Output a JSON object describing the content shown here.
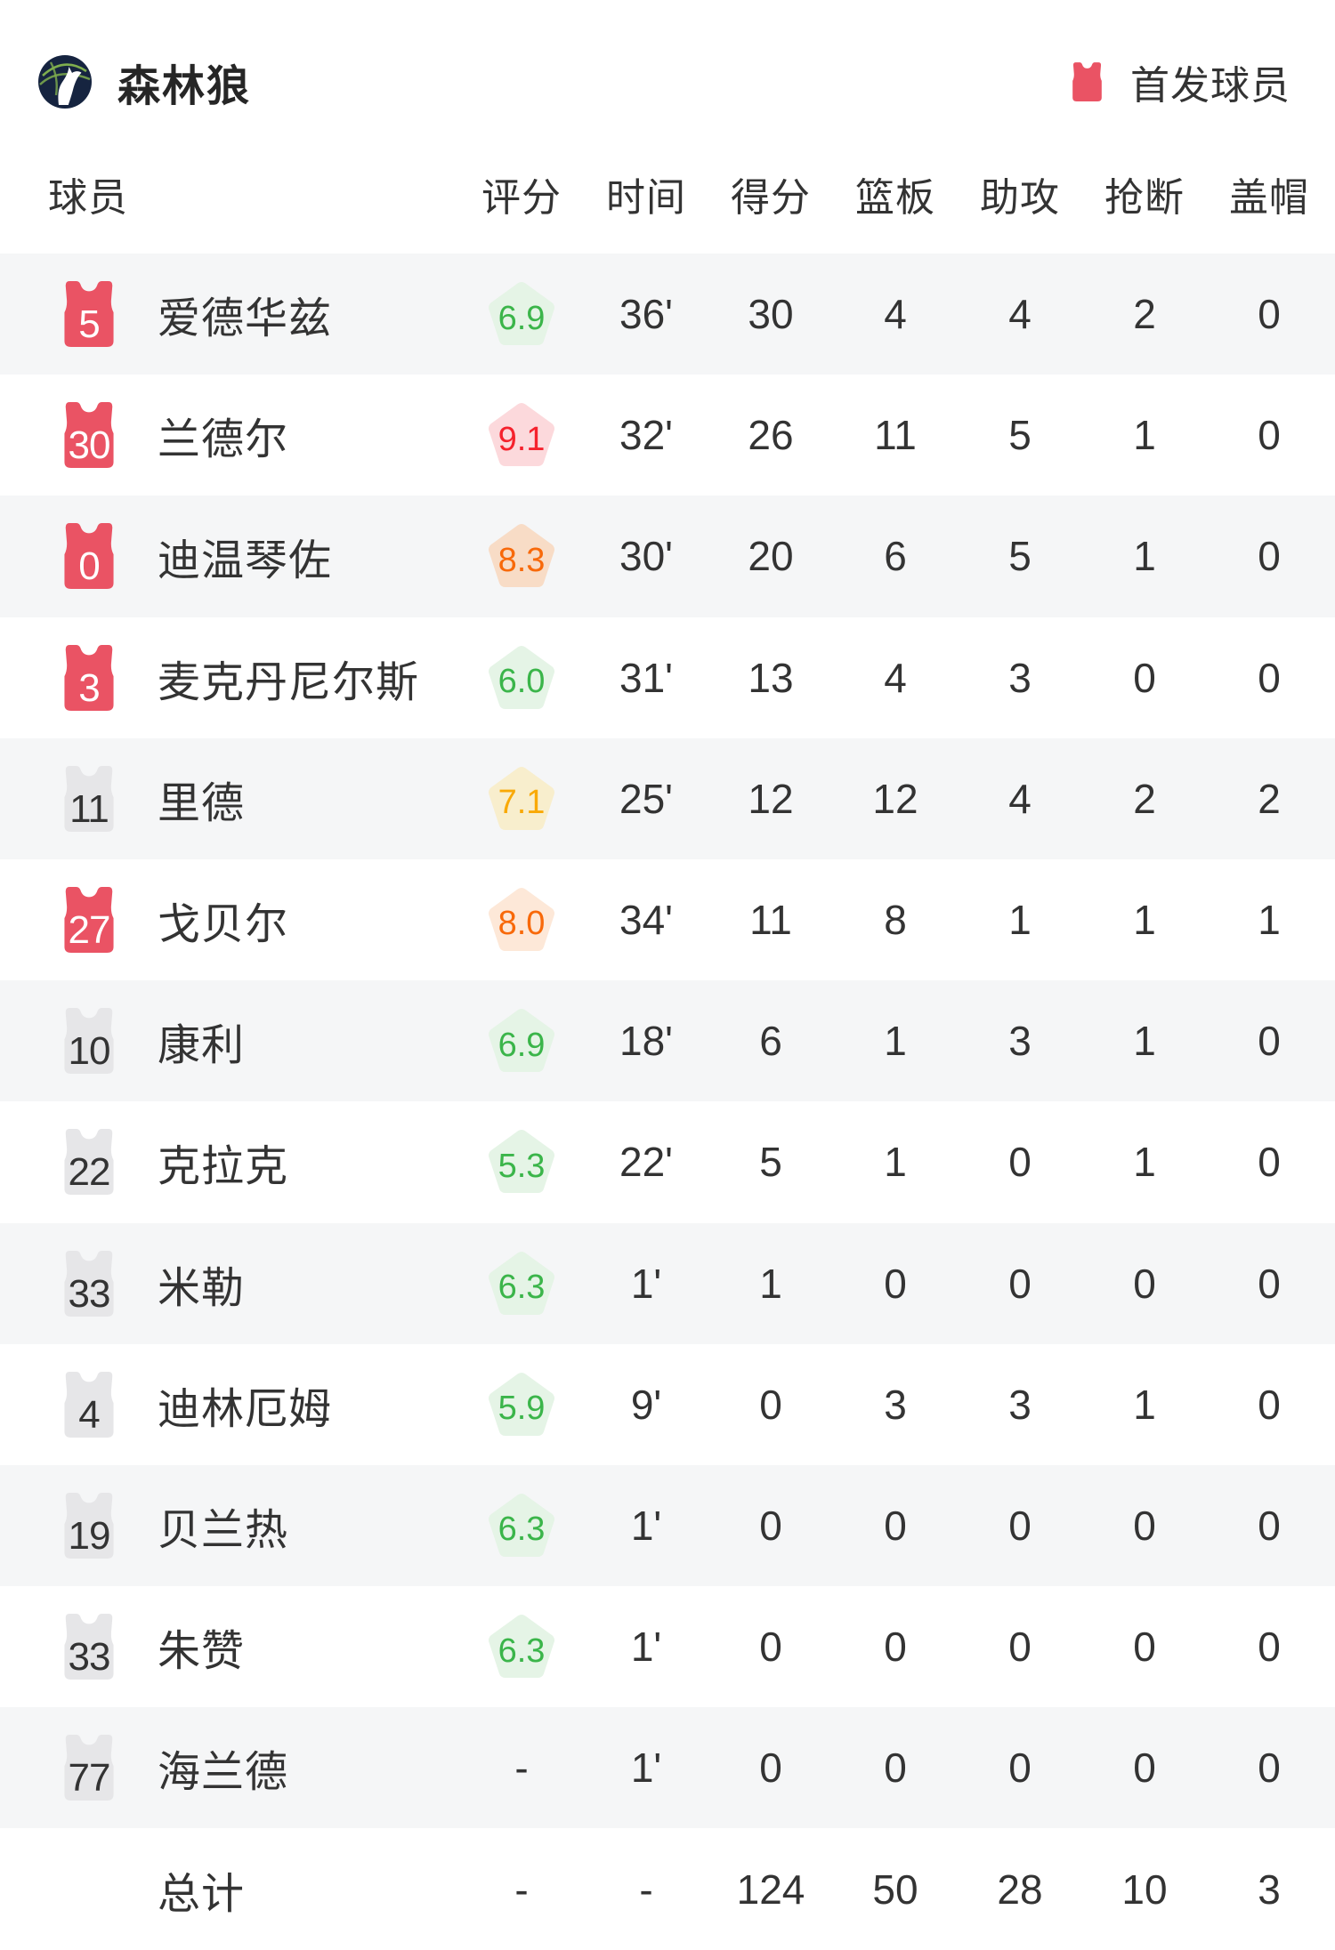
{
  "header": {
    "team_name": "森林狼",
    "legend_label": "首发球员",
    "logo_icon": "timberwolves-logo",
    "legend_icon": "red-jersey-icon"
  },
  "table": {
    "columns": [
      "球员",
      "评分",
      "时间",
      "得分",
      "篮板",
      "助攻",
      "抢断",
      "盖帽"
    ]
  },
  "colors": {
    "starter_jersey": "#ea5364",
    "bench_jersey": "#e6e6e8",
    "row_stripe": "#f5f6f7",
    "text_dark": "#333333",
    "logo_bg": "#162440",
    "logo_lines": "#7fae4e"
  },
  "rating_colors": {
    "green": {
      "bg": "#e5f4e6",
      "text": "#3bb54a"
    },
    "yellow": {
      "bg": "#f8eecd",
      "text": "#f9a906"
    },
    "orange": {
      "bg": "#f8dcc6",
      "text": "#f8690a"
    },
    "orange_light": {
      "bg": "#fde8d8",
      "text": "#f8690a"
    },
    "red": {
      "bg": "#fcd9dc",
      "text": "#f5222d"
    }
  },
  "players": [
    {
      "number": "5",
      "starter": true,
      "name": "爱德华兹",
      "rating": "6.9",
      "rating_level": "green",
      "time": "36'",
      "pts": "30",
      "reb": "4",
      "ast": "4",
      "stl": "2",
      "blk": "0"
    },
    {
      "number": "30",
      "starter": true,
      "name": "兰德尔",
      "rating": "9.1",
      "rating_level": "red",
      "time": "32'",
      "pts": "26",
      "reb": "11",
      "ast": "5",
      "stl": "1",
      "blk": "0"
    },
    {
      "number": "0",
      "starter": true,
      "name": "迪温琴佐",
      "rating": "8.3",
      "rating_level": "orange",
      "time": "30'",
      "pts": "20",
      "reb": "6",
      "ast": "5",
      "stl": "1",
      "blk": "0"
    },
    {
      "number": "3",
      "starter": true,
      "name": "麦克丹尼尔斯",
      "rating": "6.0",
      "rating_level": "green",
      "time": "31'",
      "pts": "13",
      "reb": "4",
      "ast": "3",
      "stl": "0",
      "blk": "0"
    },
    {
      "number": "11",
      "starter": false,
      "name": "里德",
      "rating": "7.1",
      "rating_level": "yellow",
      "time": "25'",
      "pts": "12",
      "reb": "12",
      "ast": "4",
      "stl": "2",
      "blk": "2"
    },
    {
      "number": "27",
      "starter": true,
      "name": "戈贝尔",
      "rating": "8.0",
      "rating_level": "orange_light",
      "time": "34'",
      "pts": "11",
      "reb": "8",
      "ast": "1",
      "stl": "1",
      "blk": "1"
    },
    {
      "number": "10",
      "starter": false,
      "name": "康利",
      "rating": "6.9",
      "rating_level": "green",
      "time": "18'",
      "pts": "6",
      "reb": "1",
      "ast": "3",
      "stl": "1",
      "blk": "0"
    },
    {
      "number": "22",
      "starter": false,
      "name": "克拉克",
      "rating": "5.3",
      "rating_level": "green",
      "time": "22'",
      "pts": "5",
      "reb": "1",
      "ast": "0",
      "stl": "1",
      "blk": "0"
    },
    {
      "number": "33",
      "starter": false,
      "name": "米勒",
      "rating": "6.3",
      "rating_level": "green",
      "time": "1'",
      "pts": "1",
      "reb": "0",
      "ast": "0",
      "stl": "0",
      "blk": "0"
    },
    {
      "number": "4",
      "starter": false,
      "name": "迪林厄姆",
      "rating": "5.9",
      "rating_level": "green",
      "time": "9'",
      "pts": "0",
      "reb": "3",
      "ast": "3",
      "stl": "1",
      "blk": "0"
    },
    {
      "number": "19",
      "starter": false,
      "name": "贝兰热",
      "rating": "6.3",
      "rating_level": "green",
      "time": "1'",
      "pts": "0",
      "reb": "0",
      "ast": "0",
      "stl": "0",
      "blk": "0"
    },
    {
      "number": "33",
      "starter": false,
      "name": "朱赞",
      "rating": "6.3",
      "rating_level": "green",
      "time": "1'",
      "pts": "0",
      "reb": "0",
      "ast": "0",
      "stl": "0",
      "blk": "0"
    },
    {
      "number": "77",
      "starter": false,
      "name": "海兰德",
      "rating": "-",
      "rating_level": "none",
      "time": "1'",
      "pts": "0",
      "reb": "0",
      "ast": "0",
      "stl": "0",
      "blk": "0"
    }
  ],
  "totals": {
    "name": "总计",
    "rating": "-",
    "time": "-",
    "pts": "124",
    "reb": "50",
    "ast": "28",
    "stl": "10",
    "blk": "3"
  }
}
